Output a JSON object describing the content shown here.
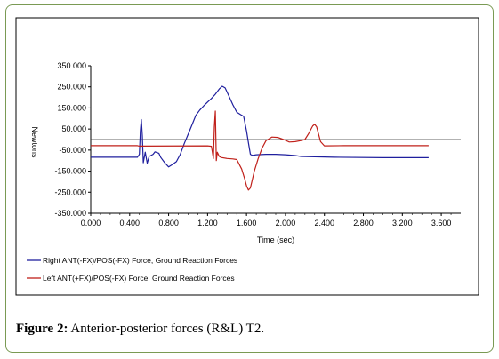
{
  "caption": {
    "label": "Figure 2:",
    "text": "Anterior-posterior forces (R&L) T2."
  },
  "chart_data": {
    "type": "line",
    "title": "",
    "xlabel": "Time (sec)",
    "ylabel": "Newtons",
    "xlim": [
      0,
      3.8
    ],
    "ylim": [
      -350,
      350
    ],
    "x_ticks": [
      "0.000",
      "0.400",
      "0.800",
      "1.200",
      "1.600",
      "2.000",
      "2.400",
      "2.800",
      "3.200",
      "3.600"
    ],
    "x_tick_values": [
      0,
      0.4,
      0.8,
      1.2,
      1.6,
      2.0,
      2.4,
      2.8,
      3.2,
      3.6
    ],
    "y_ticks": [
      "350.000",
      "250.000",
      "150.000",
      "50.000",
      "-50.000",
      "-150.000",
      "-250.000",
      "-350.000"
    ],
    "y_tick_values": [
      350,
      250,
      150,
      50,
      -50,
      -150,
      -250,
      -350
    ],
    "reference_line": 0,
    "legend_position": "bottom",
    "series": [
      {
        "name": "Right ANT(-FX)/POS(-FX) Force, Ground Reaction Forces",
        "color": "#1f1f9e",
        "points": [
          [
            0.0,
            -84
          ],
          [
            0.48,
            -84
          ],
          [
            0.5,
            -70
          ],
          [
            0.51,
            40
          ],
          [
            0.52,
            95
          ],
          [
            0.53,
            20
          ],
          [
            0.54,
            -110
          ],
          [
            0.56,
            -60
          ],
          [
            0.58,
            -112
          ],
          [
            0.6,
            -80
          ],
          [
            0.64,
            -70
          ],
          [
            0.66,
            -58
          ],
          [
            0.7,
            -65
          ],
          [
            0.72,
            -85
          ],
          [
            0.76,
            -110
          ],
          [
            0.8,
            -130
          ],
          [
            0.84,
            -118
          ],
          [
            0.88,
            -105
          ],
          [
            0.92,
            -70
          ],
          [
            0.96,
            -20
          ],
          [
            1.0,
            25
          ],
          [
            1.04,
            70
          ],
          [
            1.08,
            115
          ],
          [
            1.12,
            140
          ],
          [
            1.16,
            160
          ],
          [
            1.2,
            178
          ],
          [
            1.24,
            195
          ],
          [
            1.28,
            215
          ],
          [
            1.32,
            240
          ],
          [
            1.35,
            253
          ],
          [
            1.38,
            245
          ],
          [
            1.42,
            205
          ],
          [
            1.46,
            165
          ],
          [
            1.5,
            130
          ],
          [
            1.54,
            118
          ],
          [
            1.57,
            110
          ],
          [
            1.6,
            40
          ],
          [
            1.62,
            -15
          ],
          [
            1.64,
            -70
          ],
          [
            1.66,
            -75
          ],
          [
            1.7,
            -72
          ],
          [
            1.8,
            -70
          ],
          [
            1.9,
            -70
          ],
          [
            2.0,
            -72
          ],
          [
            2.1,
            -76
          ],
          [
            2.16,
            -80
          ],
          [
            2.3,
            -82
          ],
          [
            2.5,
            -84
          ],
          [
            3.0,
            -86
          ],
          [
            3.47,
            -86
          ]
        ]
      },
      {
        "name": "Left ANT(+FX)/POS(-FX) Force, Ground Reaction Forces",
        "color": "#c0201a",
        "points": [
          [
            0.0,
            -29
          ],
          [
            0.48,
            -29
          ],
          [
            0.5,
            -31
          ],
          [
            1.2,
            -30
          ],
          [
            1.24,
            -32
          ],
          [
            1.26,
            -90
          ],
          [
            1.27,
            60
          ],
          [
            1.28,
            135
          ],
          [
            1.29,
            -100
          ],
          [
            1.3,
            -60
          ],
          [
            1.32,
            -80
          ],
          [
            1.34,
            -85
          ],
          [
            1.4,
            -90
          ],
          [
            1.46,
            -92
          ],
          [
            1.5,
            -95
          ],
          [
            1.55,
            -140
          ],
          [
            1.58,
            -185
          ],
          [
            1.6,
            -220
          ],
          [
            1.62,
            -240
          ],
          [
            1.64,
            -230
          ],
          [
            1.68,
            -150
          ],
          [
            1.72,
            -90
          ],
          [
            1.76,
            -40
          ],
          [
            1.8,
            -5
          ],
          [
            1.86,
            12
          ],
          [
            1.92,
            10
          ],
          [
            1.98,
            0
          ],
          [
            2.04,
            -12
          ],
          [
            2.1,
            -10
          ],
          [
            2.16,
            -5
          ],
          [
            2.2,
            0
          ],
          [
            2.24,
            30
          ],
          [
            2.28,
            65
          ],
          [
            2.3,
            72
          ],
          [
            2.32,
            60
          ],
          [
            2.36,
            -10
          ],
          [
            2.4,
            -30
          ],
          [
            2.6,
            -29
          ],
          [
            3.0,
            -29
          ],
          [
            3.47,
            -29
          ]
        ]
      }
    ]
  }
}
